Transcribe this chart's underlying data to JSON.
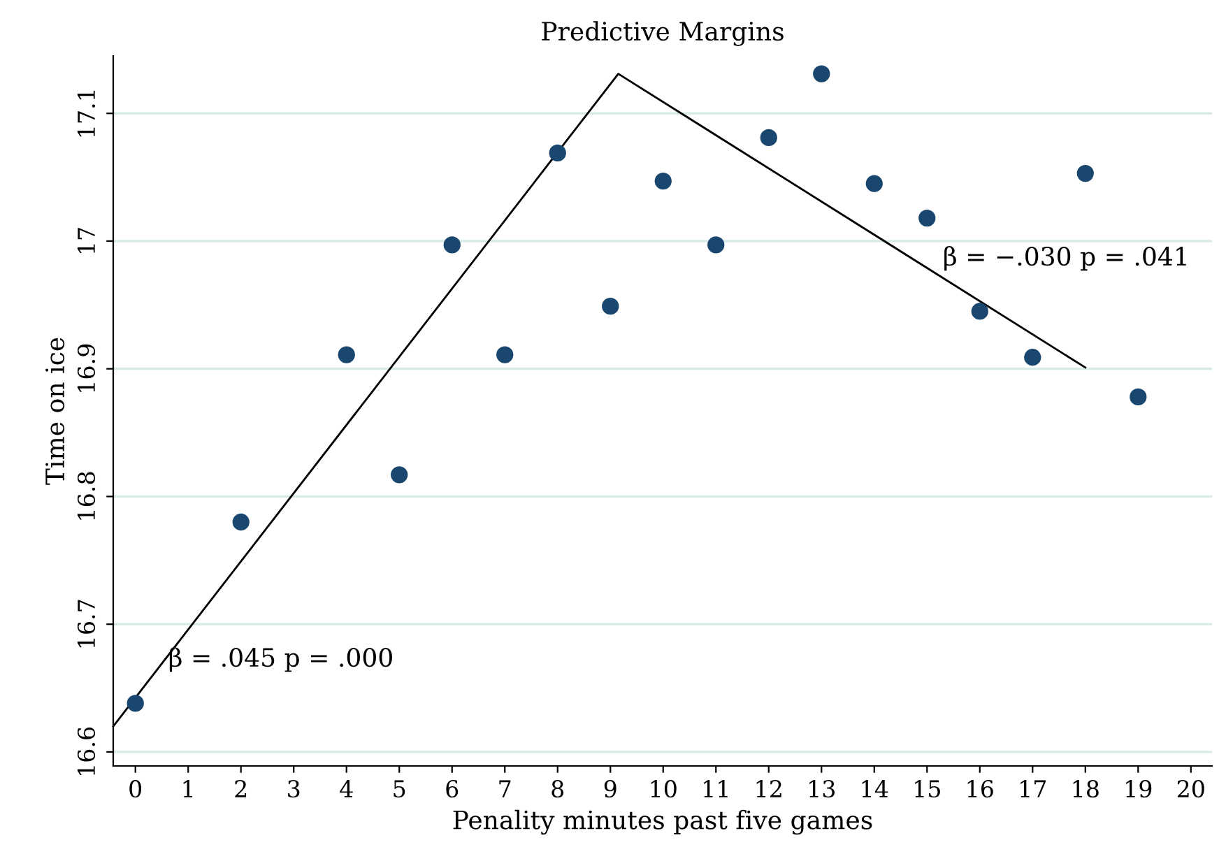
{
  "chart_data": {
    "type": "scatter",
    "title": "Predictive Margins",
    "xlabel": "Penality minutes past five games",
    "ylabel": "Time on ice",
    "series": [
      {
        "color": "#1a476f",
        "marker": "circle",
        "x": [
          0,
          2,
          4,
          5,
          6,
          7,
          8,
          9,
          10,
          11,
          12,
          13,
          14,
          15,
          16,
          17,
          18,
          19
        ],
        "values": [
          16.638,
          16.78,
          16.911,
          16.817,
          16.997,
          16.911,
          17.069,
          16.949,
          17.047,
          16.997,
          17.081,
          17.131,
          17.045,
          17.018,
          16.945,
          16.909,
          17.053,
          16.878
        ]
      },
      {
        "type": "line",
        "color": "#000000",
        "marker": "none",
        "line_style": "solid",
        "x": [
          -0.42,
          9.15,
          18
        ],
        "values": [
          16.62,
          17.131,
          16.901
        ]
      }
    ],
    "annotations": [
      "β = .045 p = .000",
      "β = −.030 p = .041"
    ],
    "xlim": [
      -0.42,
      20.4
    ],
    "ylim": [
      16.589,
      17.145
    ],
    "xticks": [
      0,
      1,
      2,
      3,
      4,
      5,
      6,
      7,
      8,
      9,
      10,
      11,
      12,
      13,
      14,
      15,
      16,
      17,
      18,
      19,
      20
    ],
    "yticks": [
      16.6,
      16.7,
      16.8,
      16.9,
      17,
      17.1
    ],
    "grid": "y"
  }
}
